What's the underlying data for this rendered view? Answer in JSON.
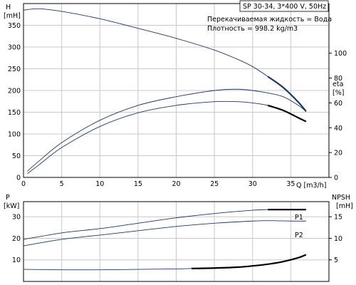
{
  "chart_data": [
    {
      "type": "line",
      "id": "upper",
      "title": "SP 30-34, 3*400 V, 50Hz",
      "annotations": [
        "Перекачиваемая жидкость = Вода",
        "Плотность = 998.2 kg/m3"
      ],
      "xlabel": "Q [m3/h]",
      "x_ticks": [
        "0",
        "5",
        "10",
        "15",
        "20",
        "25",
        "30",
        "35"
      ],
      "xlim": [
        0,
        40
      ],
      "ylabel_left": [
        "H",
        "[mH]"
      ],
      "y_ticks_left": [
        "0",
        "50",
        "100",
        "150",
        "200",
        "250",
        "300",
        "350"
      ],
      "ylim_left": [
        0,
        400
      ],
      "ylabel_right": [
        "eta",
        "[%]"
      ],
      "y_ticks_right": [
        "0",
        "20",
        "40",
        "60",
        "80",
        "100"
      ],
      "ylim_right": [
        0,
        140
      ],
      "grid": true,
      "curve_color": "#1f3864",
      "series": [
        {
          "axis": "left",
          "x": [
            0,
            2,
            5,
            10,
            15,
            20,
            25,
            28,
            30,
            32,
            34,
            36,
            37
          ],
          "y": [
            385,
            388,
            382,
            365,
            343,
            320,
            293,
            272,
            255,
            232,
            207,
            173,
            152
          ],
          "bold_from": 32
        },
        {
          "axis": "right",
          "x": [
            0.5,
            2,
            5,
            10,
            15,
            20,
            25,
            28,
            30,
            32,
            34,
            36,
            37
          ],
          "y": [
            5,
            13,
            28,
            46,
            58,
            65,
            70,
            71,
            70,
            68,
            65,
            58,
            53
          ]
        },
        {
          "axis": "right",
          "x": [
            0.5,
            2,
            5,
            10,
            15,
            20,
            25,
            28,
            30,
            32,
            34,
            36,
            37
          ],
          "y": [
            3,
            10,
            24,
            41,
            52,
            58,
            61,
            61,
            60,
            58,
            54,
            48,
            45
          ],
          "bold_from": 32
        }
      ]
    },
    {
      "type": "line",
      "id": "lower",
      "xlim": [
        0,
        40
      ],
      "ylabel_left": [
        "P",
        "[kW]"
      ],
      "y_ticks_left": [
        "10",
        "20",
        "30"
      ],
      "ylim_left": [
        0,
        37
      ],
      "ylabel_right": [
        "NPSH",
        "[mH]"
      ],
      "y_ticks_right": [
        "5",
        "10",
        "15"
      ],
      "ylim_right": [
        0,
        18.5
      ],
      "grid": true,
      "series": [
        {
          "name": "P1",
          "axis": "left",
          "x": [
            0,
            5,
            10,
            15,
            20,
            25,
            30,
            32,
            35,
            37
          ],
          "y": [
            19.5,
            22.5,
            24.5,
            27,
            29.5,
            31.5,
            33,
            33.3,
            33.3,
            33.3
          ],
          "bold_from": 32
        },
        {
          "name": "P2",
          "axis": "left",
          "x": [
            0,
            5,
            10,
            15,
            20,
            25,
            30,
            32,
            35,
            37
          ],
          "y": [
            16.5,
            19.5,
            21.5,
            23.5,
            25.5,
            27,
            28,
            28.2,
            28,
            28
          ]
        },
        {
          "axis": "right",
          "x": [
            0,
            5,
            10,
            15,
            20,
            22,
            25,
            28,
            30,
            32,
            34,
            36,
            37
          ],
          "y": [
            2.8,
            2.7,
            2.7,
            2.8,
            2.9,
            3.0,
            3.1,
            3.3,
            3.6,
            4.0,
            4.6,
            5.5,
            6.2
          ],
          "bold_from": 22
        }
      ]
    }
  ]
}
